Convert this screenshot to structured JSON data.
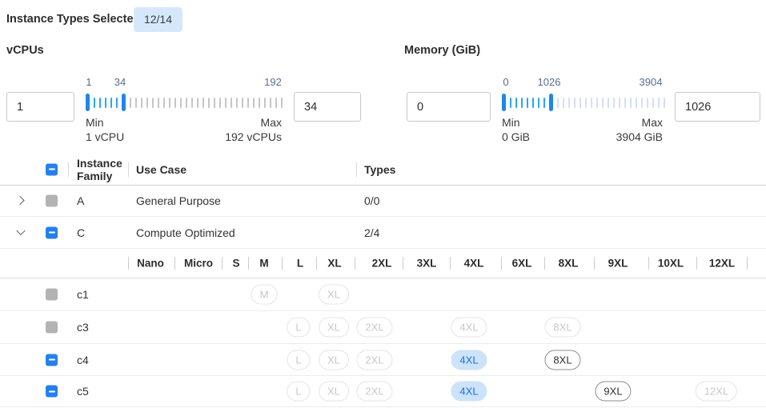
{
  "header": {
    "label": "Instance Types Selected:",
    "badge": "12/14"
  },
  "filters": {
    "vcpus": {
      "title": "vCPUs",
      "min_value": "1",
      "max_value": "34",
      "slider_labels": [
        "1",
        "34",
        "192"
      ],
      "min_label": "Min",
      "min_detail": "1 vCPU",
      "max_label": "Max",
      "max_detail": "192 vCPUs",
      "range_min": 1,
      "range_max": 192,
      "selected_min": 1,
      "selected_max": 34
    },
    "memory": {
      "title": "Memory (GiB)",
      "min_value": "0",
      "max_value": "1026",
      "slider_labels": [
        "0",
        "1026",
        "3904"
      ],
      "min_label": "Min",
      "min_detail": "0 GiB",
      "max_label": "Max",
      "max_detail": "3904 GiB",
      "range_min": 0,
      "range_max": 3904,
      "selected_min": 0,
      "selected_max": 1026
    }
  },
  "table": {
    "columns": {
      "family": "Instance Family",
      "use_case": "Use Case",
      "types": "Types"
    },
    "header_checkbox_state": "indeterminate",
    "family_rows": [
      {
        "family": "A",
        "use_case": "General Purpose",
        "types": "0/0",
        "expanded": false,
        "checkbox": "disabled"
      },
      {
        "family": "C",
        "use_case": "Compute Optimized",
        "types": "2/4",
        "expanded": true,
        "checkbox": "indeterminate"
      }
    ],
    "size_columns": [
      "Nano",
      "Micro",
      "S",
      "M",
      "L",
      "XL",
      "2XL",
      "3XL",
      "4XL",
      "6XL",
      "8XL",
      "9XL",
      "10XL",
      "12XL"
    ],
    "instance_rows": [
      {
        "name": "c1",
        "checkbox": "disabled",
        "pills": [
          {
            "label": "M",
            "size": "m",
            "state": "disabled"
          },
          {
            "label": "XL",
            "size": "xl",
            "state": "disabled"
          }
        ]
      },
      {
        "name": "c3",
        "checkbox": "disabled",
        "pills": [
          {
            "label": "L",
            "size": "l",
            "state": "disabled"
          },
          {
            "label": "XL",
            "size": "xl",
            "state": "disabled"
          },
          {
            "label": "2XL",
            "size": "2xl",
            "state": "disabled"
          },
          {
            "label": "4XL",
            "size": "4xl",
            "state": "disabled"
          },
          {
            "label": "8XL",
            "size": "8xl",
            "state": "disabled"
          }
        ]
      },
      {
        "name": "c4",
        "checkbox": "indeterminate",
        "pills": [
          {
            "label": "L",
            "size": "l",
            "state": "disabled"
          },
          {
            "label": "XL",
            "size": "xl",
            "state": "disabled"
          },
          {
            "label": "2XL",
            "size": "2xl",
            "state": "disabled"
          },
          {
            "label": "4XL",
            "size": "4xl",
            "state": "selected"
          },
          {
            "label": "8XL",
            "size": "8xl",
            "state": "enabled"
          }
        ]
      },
      {
        "name": "c5",
        "checkbox": "indeterminate",
        "pills": [
          {
            "label": "L",
            "size": "l",
            "state": "disabled"
          },
          {
            "label": "XL",
            "size": "xl",
            "state": "disabled"
          },
          {
            "label": "2XL",
            "size": "2xl",
            "state": "disabled"
          },
          {
            "label": "4XL",
            "size": "4xl",
            "state": "selected"
          },
          {
            "label": "9XL",
            "size": "9xl",
            "state": "enabled"
          },
          {
            "label": "12XL",
            "size": "12xl",
            "state": "disabled"
          }
        ]
      }
    ]
  },
  "colors": {
    "accent_blue": "#2680eb",
    "badge_bg": "#d5e8fb",
    "selected_pill_bg": "#cde3f9",
    "selected_pill_text": "#1672e6",
    "slider_handle": "#1f86e8",
    "slider_tick_selected": "#29a7ee",
    "slider_tick_vcpu_rest": "#c6c6c6",
    "slider_tick_mem_rest": "#d4e0f2",
    "slider_label_text": "#5b6c8f",
    "disabled_checkbox": "#b3b3b3"
  }
}
